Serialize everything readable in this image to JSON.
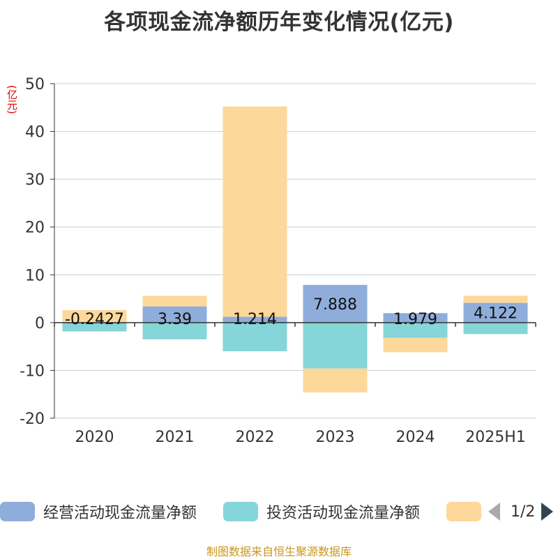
{
  "title": "各项现金流净额历年变化情况(亿元)",
  "unit_label": "(亿元)",
  "source": "制图数据来自恒生聚源数据库",
  "legend": {
    "items": [
      {
        "label": "经营活动现金流量净额",
        "color": "#8eaddb"
      },
      {
        "label": "投资活动现金流量净额",
        "color": "#86d5d8"
      },
      {
        "label": "",
        "color": "#fdd89b"
      }
    ],
    "page": "1/2"
  },
  "chart_data": {
    "type": "bar",
    "stacked": true,
    "categories": [
      "2020",
      "2021",
      "2022",
      "2023",
      "2024",
      "2025H1"
    ],
    "ylim": [
      -20,
      50
    ],
    "yticks": [
      -20,
      -10,
      0,
      10,
      20,
      30,
      40,
      50
    ],
    "grid": true,
    "legend_position": "bottom",
    "series": [
      {
        "name": "经营活动现金流量净额",
        "color": "#8eaddb",
        "values": [
          -0.2427,
          3.39,
          1.214,
          7.888,
          1.979,
          4.122
        ],
        "labels": [
          "-0.2427",
          "3.39",
          "1.214",
          "7.888",
          "1.979",
          "4.122"
        ]
      },
      {
        "name": "投资活动现金流量净额",
        "color": "#86d5d8",
        "values": [
          -1.6,
          -3.5,
          -6.0,
          -9.6,
          -3.2,
          -2.4
        ]
      },
      {
        "color": "#fdd89b",
        "values": [
          2.6,
          2.2,
          44.0,
          -5.0,
          -3.0,
          1.5
        ]
      }
    ]
  }
}
